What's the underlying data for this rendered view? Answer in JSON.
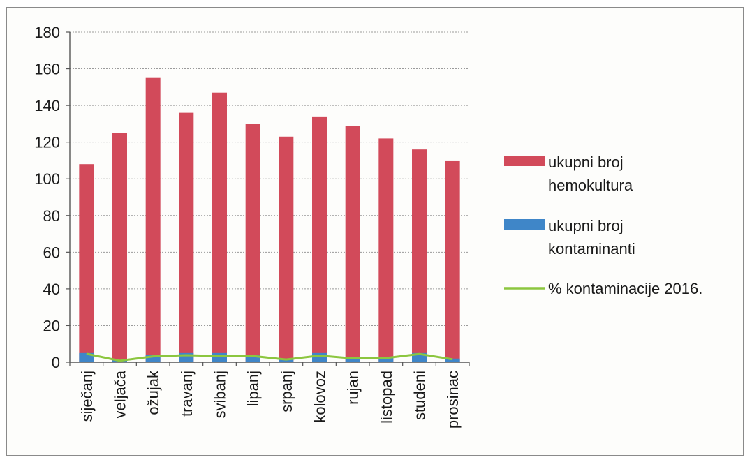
{
  "chart_data": {
    "type": "bar",
    "stacked": true,
    "categories": [
      "siječanj",
      "veljača",
      "ožujak",
      "travanj",
      "svibanj",
      "lipanj",
      "srpanj",
      "kolovoz",
      "rujan",
      "listopad",
      "studeni",
      "prosinac"
    ],
    "series": [
      {
        "name": "ukupni broj hemokultura",
        "type": "bar",
        "color": "#d24a5a",
        "values": [
          108,
          125,
          155,
          136,
          147,
          130,
          123,
          134,
          129,
          122,
          116,
          110
        ]
      },
      {
        "name": "ukupni broj kontaminanti",
        "type": "bar",
        "color": "#3f86c8",
        "values": [
          5,
          1,
          4,
          5,
          5,
          4,
          2,
          5,
          3,
          3,
          5,
          2
        ]
      },
      {
        "name": "% kontaminacije 2016.",
        "type": "line",
        "color": "#8cc63f",
        "values": [
          4.6,
          0.8,
          3.2,
          3.8,
          3.4,
          3.4,
          1.5,
          3.6,
          2.1,
          2.3,
          4.5,
          1.6
        ]
      }
    ],
    "ylim": [
      0,
      180
    ],
    "yticks": [
      0,
      20,
      40,
      60,
      80,
      100,
      120,
      140,
      160,
      180
    ],
    "grid": true,
    "legend_position": "right",
    "legend_lines": [
      [
        "ukupni broj",
        "hemokultura"
      ],
      [
        "ukupni broj",
        "kontaminanti"
      ],
      [
        "% kontaminacije 2016."
      ]
    ]
  }
}
